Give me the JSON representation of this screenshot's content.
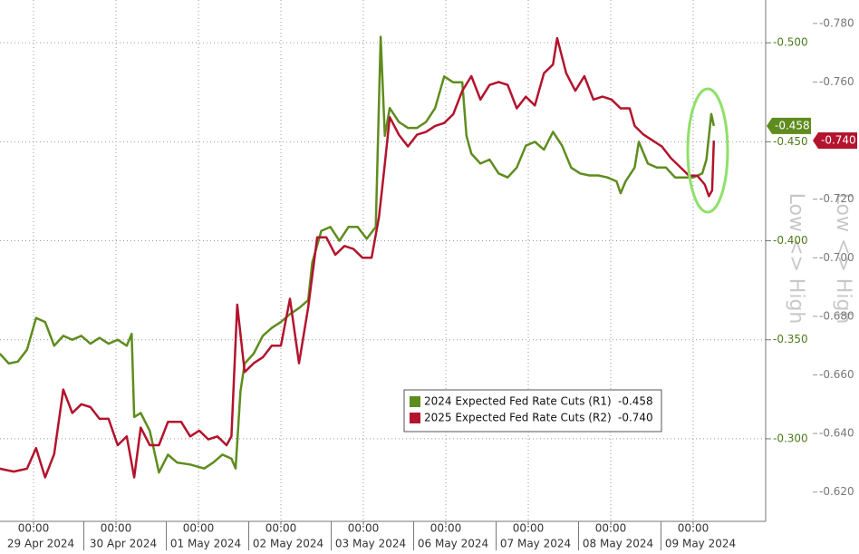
{
  "chart_data": {
    "type": "line",
    "y_label": "Low <> High",
    "y2_label": "Low <> High",
    "xlim": [
      -0.407,
      8.879
    ],
    "xticks": [
      {
        "value": 0,
        "label": "00:00"
      },
      {
        "value": 1,
        "label": "00:00"
      },
      {
        "value": 2,
        "label": "00:00"
      },
      {
        "value": 3,
        "label": "00:00"
      },
      {
        "value": 4,
        "label": "00:00"
      },
      {
        "value": 5,
        "label": "00:00"
      },
      {
        "value": 6,
        "label": "00:00"
      },
      {
        "value": 7,
        "label": "00:00"
      },
      {
        "value": 8,
        "label": "00:00"
      }
    ],
    "xtick_dates": [
      "29 Apr 2024",
      "30 Apr 2024",
      "01 May 2024",
      "02 May 2024",
      "03 May 2024",
      "06 May 2024",
      "07 May 2024",
      "08 May 2024",
      "09 May 2024"
    ],
    "ylim": [
      -0.2583,
      -0.5216
    ],
    "yticks": [
      {
        "value": -0.5,
        "label": "-0.500"
      },
      {
        "value": -0.45,
        "label": "-0.450"
      },
      {
        "value": -0.4,
        "label": "-0.400"
      },
      {
        "value": -0.35,
        "label": "-0.350"
      },
      {
        "value": -0.3,
        "label": "-0.300"
      }
    ],
    "y2lim": [
      -0.61,
      -0.788
    ],
    "y2ticks": [
      {
        "value": -0.78,
        "label": "-0.780"
      },
      {
        "value": -0.76,
        "label": "-0.760"
      },
      {
        "value": -0.72,
        "label": "-0.720"
      },
      {
        "value": -0.7,
        "label": "-0.700"
      },
      {
        "value": -0.68,
        "label": "-0.680"
      },
      {
        "value": -0.66,
        "label": "-0.660"
      },
      {
        "value": -0.64,
        "label": "-0.640"
      },
      {
        "value": -0.62,
        "label": "-0.620"
      }
    ],
    "grid": true,
    "legend_position": "bottom-center",
    "series": [
      {
        "name": "2024 Expected Fed Rate Cuts (R1)",
        "color": "#5f8c1e",
        "axis": "y",
        "value_label": "-0.458",
        "x": [
          -0.41,
          -0.3,
          -0.19,
          -0.08,
          0.03,
          0.14,
          0.25,
          0.36,
          0.47,
          0.58,
          0.69,
          0.8,
          0.91,
          1.02,
          1.13,
          1.19,
          1.22,
          1.3,
          1.41,
          1.52,
          1.63,
          1.74,
          1.9,
          2.07,
          2.18,
          2.29,
          2.4,
          2.45,
          2.51,
          2.56,
          2.67,
          2.78,
          2.89,
          3.0,
          3.11,
          3.22,
          3.33,
          3.38,
          3.49,
          3.6,
          3.71,
          3.82,
          3.93,
          4.04,
          4.15,
          4.21,
          4.26,
          4.32,
          4.43,
          4.54,
          4.65,
          4.76,
          4.87,
          4.98,
          5.09,
          5.2,
          5.25,
          5.31,
          5.42,
          5.53,
          5.64,
          5.75,
          5.86,
          5.97,
          6.08,
          6.19,
          6.3,
          6.41,
          6.52,
          6.63,
          6.74,
          6.85,
          6.96,
          7.07,
          7.12,
          7.18,
          7.29,
          7.34,
          7.45,
          7.56,
          7.67,
          7.78,
          7.89,
          8.0,
          8.11,
          8.16,
          8.22,
          8.25
        ],
        "values": [
          -0.343,
          -0.338,
          -0.339,
          -0.345,
          -0.361,
          -0.359,
          -0.347,
          -0.352,
          -0.35,
          -0.352,
          -0.348,
          -0.351,
          -0.348,
          -0.35,
          -0.347,
          -0.353,
          -0.311,
          -0.313,
          -0.304,
          -0.283,
          -0.292,
          -0.288,
          -0.287,
          -0.285,
          -0.288,
          -0.292,
          -0.29,
          -0.285,
          -0.324,
          -0.338,
          -0.343,
          -0.352,
          -0.356,
          -0.359,
          -0.363,
          -0.366,
          -0.37,
          -0.389,
          -0.405,
          -0.407,
          -0.4,
          -0.407,
          -0.407,
          -0.401,
          -0.407,
          -0.503,
          -0.453,
          -0.467,
          -0.46,
          -0.457,
          -0.457,
          -0.46,
          -0.467,
          -0.483,
          -0.48,
          -0.48,
          -0.453,
          -0.444,
          -0.439,
          -0.441,
          -0.434,
          -0.432,
          -0.437,
          -0.448,
          -0.45,
          -0.446,
          -0.455,
          -0.448,
          -0.437,
          -0.434,
          -0.433,
          -0.433,
          -0.432,
          -0.43,
          -0.424,
          -0.43,
          -0.437,
          -0.45,
          -0.439,
          -0.437,
          -0.437,
          -0.432,
          -0.432,
          -0.432,
          -0.434,
          -0.441,
          -0.464,
          -0.458
        ]
      },
      {
        "name": "2025 Expected Fed Rate Cuts (R2)",
        "color": "#b3132d",
        "axis": "y2",
        "value_label": "-0.740",
        "x": [
          -0.41,
          -0.24,
          -0.08,
          0.03,
          0.14,
          0.25,
          0.36,
          0.47,
          0.58,
          0.69,
          0.8,
          0.91,
          1.02,
          1.13,
          1.22,
          1.3,
          1.41,
          1.52,
          1.63,
          1.79,
          1.9,
          2.01,
          2.12,
          2.23,
          2.34,
          2.4,
          2.47,
          2.56,
          2.67,
          2.78,
          2.89,
          3.0,
          3.11,
          3.22,
          3.33,
          3.44,
          3.55,
          3.66,
          3.77,
          3.88,
          3.99,
          4.1,
          4.19,
          4.26,
          4.32,
          4.43,
          4.54,
          4.65,
          4.76,
          4.87,
          4.98,
          5.09,
          5.2,
          5.31,
          5.42,
          5.53,
          5.64,
          5.75,
          5.86,
          5.97,
          6.08,
          6.19,
          6.3,
          6.35,
          6.46,
          6.57,
          6.68,
          6.79,
          6.9,
          7.01,
          7.12,
          7.23,
          7.29,
          7.4,
          7.51,
          7.62,
          7.73,
          7.84,
          7.95,
          8.05,
          8.14,
          8.19,
          8.23,
          8.25
        ],
        "values": [
          -0.628,
          -0.627,
          -0.628,
          -0.635,
          -0.625,
          -0.633,
          -0.655,
          -0.647,
          -0.65,
          -0.649,
          -0.645,
          -0.645,
          -0.636,
          -0.639,
          -0.625,
          -0.642,
          -0.636,
          -0.636,
          -0.644,
          -0.644,
          -0.639,
          -0.641,
          -0.638,
          -0.639,
          -0.636,
          -0.639,
          -0.684,
          -0.661,
          -0.664,
          -0.666,
          -0.67,
          -0.67,
          -0.686,
          -0.664,
          -0.683,
          -0.707,
          -0.707,
          -0.701,
          -0.704,
          -0.703,
          -0.7,
          -0.7,
          -0.714,
          -0.732,
          -0.748,
          -0.742,
          -0.738,
          -0.742,
          -0.743,
          -0.745,
          -0.746,
          -0.749,
          -0.757,
          -0.762,
          -0.754,
          -0.759,
          -0.76,
          -0.759,
          -0.751,
          -0.755,
          -0.752,
          -0.763,
          -0.766,
          -0.775,
          -0.763,
          -0.757,
          -0.762,
          -0.754,
          -0.755,
          -0.754,
          -0.751,
          -0.751,
          -0.745,
          -0.742,
          -0.74,
          -0.738,
          -0.734,
          -0.731,
          -0.728,
          -0.728,
          -0.725,
          -0.721,
          -0.723,
          -0.74
        ]
      }
    ]
  }
}
